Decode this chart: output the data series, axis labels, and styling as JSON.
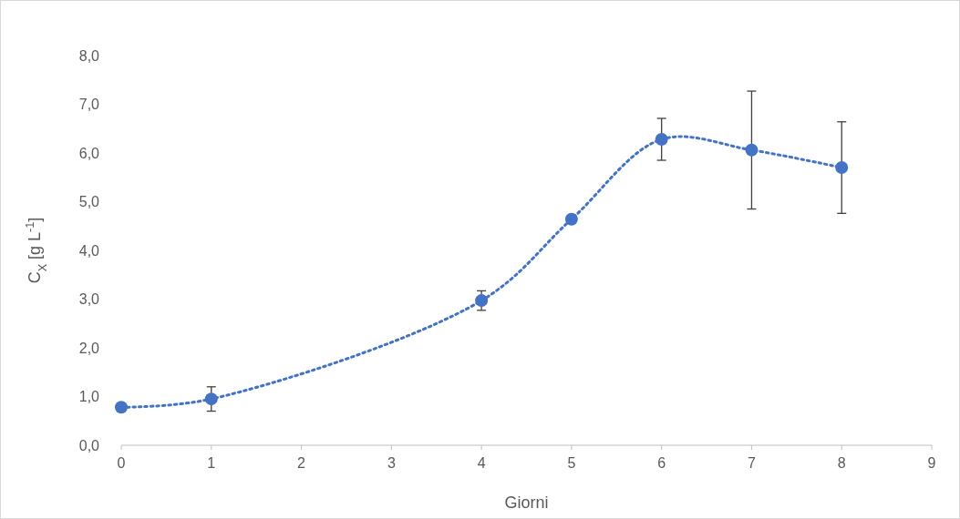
{
  "chart_data": {
    "type": "line",
    "xlabel": "Giorni",
    "ylabel": "C$_{X}$ [g L$^{-1}$]",
    "x": [
      0,
      1,
      4,
      5,
      6,
      7,
      8
    ],
    "series": [
      {
        "color": "#4472c4",
        "values": [
          0.78,
          0.95,
          2.97,
          4.64,
          6.28,
          6.06,
          5.7
        ],
        "errors": [
          null,
          0.25,
          0.2,
          null,
          0.43,
          1.21,
          0.94
        ]
      }
    ],
    "xlim": [
      0,
      9
    ],
    "xticks": [
      0,
      1,
      2,
      3,
      4,
      5,
      6,
      7,
      8,
      9
    ],
    "ylim": [
      0,
      8
    ],
    "yticks": [
      {
        "value": 0,
        "label": "0,0"
      },
      {
        "value": 1,
        "label": "1,0"
      },
      {
        "value": 2,
        "label": "2,0"
      },
      {
        "value": 3,
        "label": "3,0"
      },
      {
        "value": 4,
        "label": "4,0"
      },
      {
        "value": 5,
        "label": "5,0"
      },
      {
        "value": 6,
        "label": "6,0"
      },
      {
        "value": 7,
        "label": "7,0"
      },
      {
        "value": 8,
        "label": "8,0"
      }
    ],
    "marker": "circle",
    "line_style": "dotted",
    "grid": false
  }
}
